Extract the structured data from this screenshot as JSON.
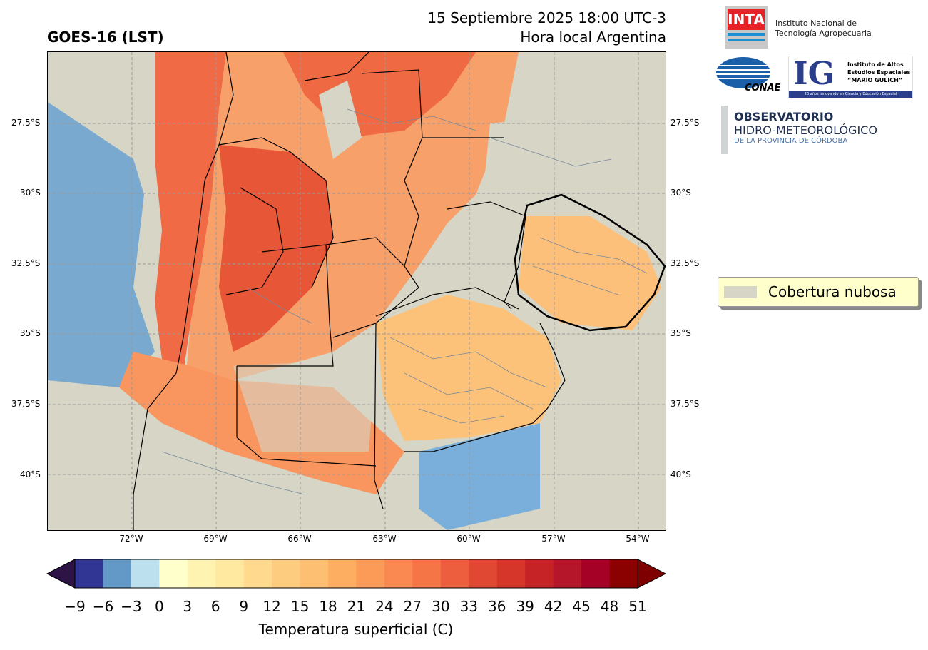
{
  "header": {
    "product": "GOES-16 (LST)",
    "datetime": "15 Septiembre 2025 18:00 UTC-3",
    "local_time": "Hora local Argentina"
  },
  "axes": {
    "lat_ticks": [
      "27.5°S",
      "30°S",
      "32.5°S",
      "35°S",
      "37.5°S",
      "40°S"
    ],
    "lon_ticks": [
      "72°W",
      "69°W",
      "66°W",
      "63°W",
      "60°W",
      "57°W",
      "54°W"
    ]
  },
  "colorbar": {
    "label": "Temperatura superficial (C)",
    "ticks": [
      "−9",
      "−6",
      "−3",
      "0",
      "3",
      "6",
      "9",
      "12",
      "15",
      "18",
      "21",
      "24",
      "27",
      "30",
      "33",
      "36",
      "39",
      "42",
      "45",
      "48",
      "51"
    ],
    "colors": [
      "#313695",
      "#6399c7",
      "#bde0ee",
      "#ffffcc",
      "#fff3b2",
      "#ffe9a0",
      "#fed98e",
      "#fecc7f",
      "#fdbf71",
      "#fdae61",
      "#fc9a57",
      "#f98851",
      "#f57547",
      "#ec5e3d",
      "#e14833",
      "#d6352a",
      "#c52326",
      "#b51629",
      "#a50026",
      "#8b0000"
    ],
    "under_color": "#2d1346",
    "over_color": "#7f0000"
  },
  "legend": {
    "cloud_label": "Cobertura nubosa",
    "cloud_color": "#d6d5c6"
  },
  "logos": {
    "inta_mark": "INTA",
    "inta_name_line1": "Instituto Nacional de",
    "inta_name_line2": "Tecnología Agropecuaria",
    "conae_mark": "CONAE",
    "ig_mark": "IG",
    "ig_line1": "Instituto de Altos",
    "ig_line2": "Estudios Espaciales",
    "ig_line3": "“MARIO GULICH”",
    "ig_tagline": "20 años innovando en Ciencia y Educación Espacial",
    "obs_line1": "OBSERVATORIO",
    "obs_line2": "HIDRO-METEOROLÓGICO",
    "obs_line3": "DE LA PROVINCIA DE CÓRDOBA"
  }
}
